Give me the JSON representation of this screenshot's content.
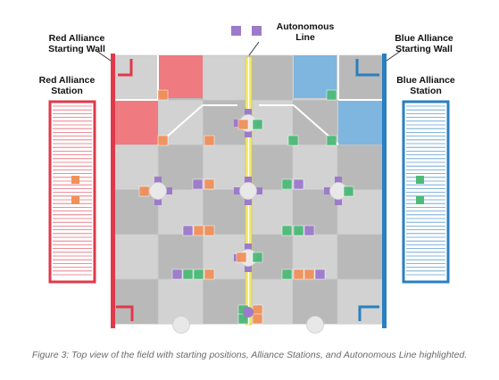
{
  "labels": {
    "red_wall": "Red Alliance Starting Wall",
    "red_station": "Red Alliance Station",
    "autonomous_line": "Autonomous Line",
    "blue_wall": "Blue Alliance Starting Wall",
    "blue_station": "Blue Alliance Station"
  },
  "caption": "Figure 3: Top view of the field with starting positions, Alliance Stations, and Autonomous Line highlighted.",
  "colors": {
    "red": "#e0394a",
    "red_zone": "#ef7a80",
    "blue": "#2a7fc0",
    "blue_zone": "#7eb6df",
    "purple": "#9d7bcb",
    "orange": "#f0915a",
    "green": "#4dbb78",
    "autonomous_line": "#f2ea6b",
    "tile_light": "#d2d2d2",
    "tile_dark": "#b9b9b9"
  }
}
